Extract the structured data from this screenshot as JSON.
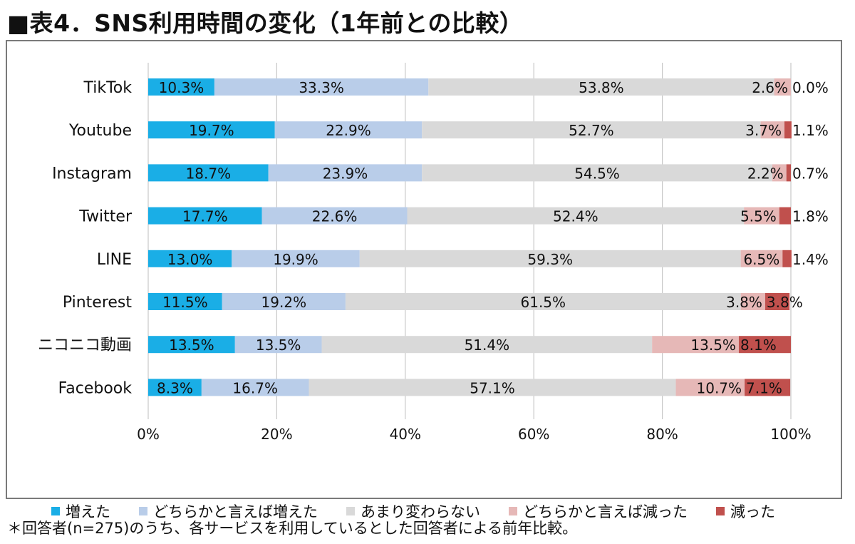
{
  "title": "■表4．SNS利用時間の変化（1年前との比較）",
  "footnote": "＊回答者(n=275)のうち、各サービスを利用しているとした回答者による前年比較。",
  "chart_data": {
    "type": "bar",
    "orientation": "horizontal",
    "stacked": "percent",
    "title": "",
    "xlabel": "",
    "ylabel": "",
    "xlim": [
      0,
      100
    ],
    "x_ticks": [
      "0%",
      "20%",
      "40%",
      "60%",
      "80%",
      "100%"
    ],
    "grid": true,
    "legend_position": "bottom",
    "categories": [
      "TikTok",
      "Youtube",
      "Instagram",
      "Twitter",
      "LINE",
      "Pinterest",
      "ニコニコ動画",
      "Facebook"
    ],
    "series": [
      {
        "name": "増えた",
        "color": "#1aaee6",
        "values": [
          10.3,
          19.7,
          18.7,
          17.7,
          13.0,
          11.5,
          13.5,
          8.3
        ]
      },
      {
        "name": "どちらかと言えば増えた",
        "color": "#b9cde9",
        "values": [
          33.3,
          22.9,
          23.9,
          22.6,
          19.9,
          19.2,
          13.5,
          16.7
        ]
      },
      {
        "name": "あまり変わらない",
        "color": "#d9d9d9",
        "values": [
          53.8,
          52.7,
          54.5,
          52.4,
          59.3,
          61.5,
          51.4,
          57.1
        ]
      },
      {
        "name": "どちらかと言えば減った",
        "color": "#e6b8b7",
        "values": [
          2.6,
          3.7,
          2.2,
          5.5,
          6.5,
          3.8,
          13.5,
          10.7
        ]
      },
      {
        "name": "減った",
        "color": "#c0504d",
        "values": [
          0.0,
          1.1,
          0.7,
          1.8,
          1.4,
          3.8,
          8.1,
          7.1
        ]
      }
    ],
    "data_labels": [
      [
        "10.3%",
        "33.3%",
        "53.8%",
        "2.6%",
        "0.0%"
      ],
      [
        "19.7%",
        "22.9%",
        "52.7%",
        "3.7%",
        "1.1%"
      ],
      [
        "18.7%",
        "23.9%",
        "54.5%",
        "2.2%",
        "0.7%"
      ],
      [
        "17.7%",
        "22.6%",
        "52.4%",
        "5.5%",
        "1.8%"
      ],
      [
        "13.0%",
        "19.9%",
        "59.3%",
        "6.5%",
        "1.4%"
      ],
      [
        "11.5%",
        "19.2%",
        "61.5%",
        "3.8%",
        "3.8%"
      ],
      [
        "13.5%",
        "13.5%",
        "51.4%",
        "13.5%",
        "8.1%"
      ],
      [
        "8.3%",
        "16.7%",
        "57.1%",
        "10.7%",
        "7.1%"
      ]
    ]
  }
}
